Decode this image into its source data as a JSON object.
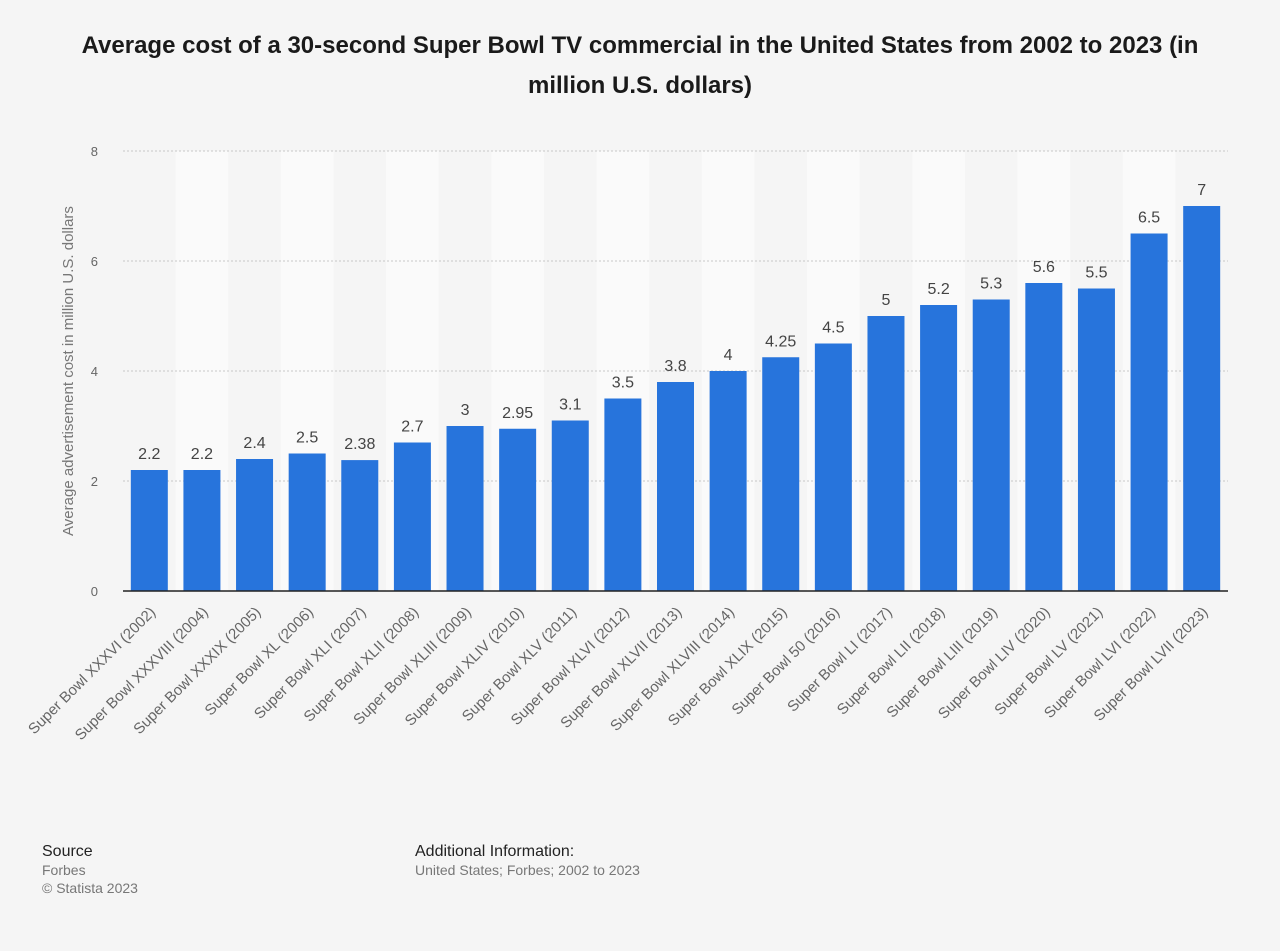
{
  "chart_data": {
    "type": "bar",
    "title": "Average cost of a 30-second Super Bowl TV commercial in the United States from 2002 to 2023 (in million U.S. dollars)",
    "xlabel": "",
    "ylabel": "Average advertisement cost in million U.S. dollars",
    "ylim": [
      0,
      8
    ],
    "yticks": [
      "0",
      "2",
      "4",
      "6",
      "8"
    ],
    "grid": true,
    "categories": [
      "Super Bowl XXXVI (2002)",
      "Super Bowl XXXVIII (2004)",
      "Super Bowl XXXIX (2005)",
      "Super Bowl XL (2006)",
      "Super Bowl XLI (2007)",
      "Super Bowl XLII (2008)",
      "Super Bowl XLIII (2009)",
      "Super Bowl XLIV (2010)",
      "Super Bowl XLV (2011)",
      "Super Bowl XLVI (2012)",
      "Super Bowl XLVII (2013)",
      "Super Bowl XLVIII (2014)",
      "Super Bowl XLIX (2015)",
      "Super Bowl 50 (2016)",
      "Super Bowl LI (2017)",
      "Super Bowl LII (2018)",
      "Super Bowl LIII (2019)",
      "Super Bowl LIV (2020)",
      "Super Bowl LV (2021)",
      "Super Bowl LVI (2022)",
      "Super Bowl LVII (2023)"
    ],
    "values": [
      2.2,
      2.2,
      2.4,
      2.5,
      2.38,
      2.7,
      3,
      2.95,
      3.1,
      3.5,
      3.8,
      4,
      4.25,
      4.5,
      5,
      5.2,
      5.3,
      5.6,
      5.5,
      6.5,
      7
    ],
    "value_labels": [
      "2.2",
      "2.2",
      "2.4",
      "2.5",
      "2.38",
      "2.7",
      "3",
      "2.95",
      "3.1",
      "3.5",
      "3.8",
      "4",
      "4.25",
      "4.5",
      "5",
      "5.2",
      "5.3",
      "5.6",
      "5.5",
      "6.5",
      "7"
    ],
    "colors": {
      "bar": "#2774dc",
      "grid": "#c8c8c8",
      "axis": "#222222",
      "band": "#fafafa",
      "tick_text": "#666666",
      "value_text": "#444444"
    }
  },
  "footer": {
    "source_heading": "Source",
    "source_name": "Forbes",
    "copyright": "© Statista 2023",
    "additional_heading": "Additional Information:",
    "additional_text": "United States; Forbes; 2002 to 2023"
  }
}
